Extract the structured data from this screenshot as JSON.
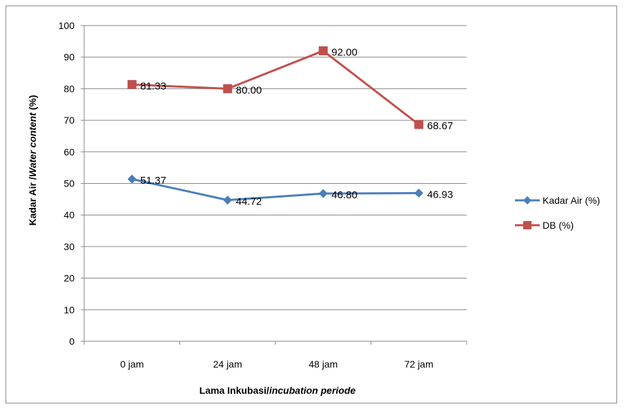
{
  "chart_data": {
    "type": "line",
    "categories": [
      "0 jam",
      "24 jam",
      "48 jam",
      "72 jam"
    ],
    "series": [
      {
        "name": "Kadar Air (%)",
        "values": [
          51.37,
          44.72,
          46.8,
          46.93
        ],
        "labels": [
          "51.37",
          "44.72",
          "46.80",
          "46.93"
        ],
        "color": "#4a7ebb",
        "marker": "diamond"
      },
      {
        "name": "DB (%)",
        "values": [
          81.33,
          80.0,
          92.0,
          68.67
        ],
        "labels": [
          "81.33",
          "80.00",
          "92.00",
          "68.67"
        ],
        "color": "#c0504d",
        "marker": "square"
      }
    ],
    "ylim": [
      0,
      100
    ],
    "yticks": [
      "0",
      "10",
      "20",
      "30",
      "40",
      "50",
      "60",
      "70",
      "80",
      "90",
      "100"
    ],
    "xlabel": {
      "normal": "Lama Inkubasi/",
      "italic": "incubation periode"
    },
    "ylabel": {
      "normal": "Kadar Air /",
      "italic": "Water content",
      "suffix": " (%)"
    },
    "gridlines": "horizontal",
    "legend_position": "right"
  }
}
